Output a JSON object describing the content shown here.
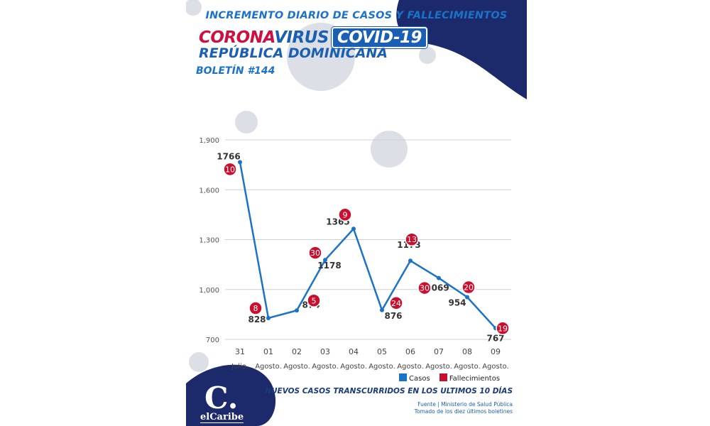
{
  "header": {
    "title": "INCREMENTO DIARIO DE CASOS Y FALLECIMIENTOS",
    "corona": "CORONA",
    "virus": "VIRUS",
    "covid": "COVID-19",
    "country": "REPÚBLICA DOMINICANA",
    "bulletin": "BOLETÍN #144"
  },
  "colors": {
    "casos": "#1a73c7",
    "fallecimientos": "#c8102e",
    "navy": "#1c2a6b"
  },
  "chart_data": {
    "type": "line",
    "categories": [
      {
        "day": "31",
        "month": "Julio."
      },
      {
        "day": "01",
        "month": "Agosto."
      },
      {
        "day": "02",
        "month": "Agosto."
      },
      {
        "day": "03",
        "month": "Agosto."
      },
      {
        "day": "04",
        "month": "Agosto."
      },
      {
        "day": "05",
        "month": "Agosto."
      },
      {
        "day": "06",
        "month": "Agosto."
      },
      {
        "day": "07",
        "month": "Agosto."
      },
      {
        "day": "08",
        "month": "Agosto."
      },
      {
        "day": "09",
        "month": "Agosto."
      }
    ],
    "series": [
      {
        "name": "Casos",
        "values": [
          1766,
          828,
          874,
          1178,
          1365,
          876,
          1173,
          1069,
          954,
          767
        ]
      },
      {
        "name": "Fallecimientos",
        "values": [
          10,
          8,
          5,
          30,
          9,
          24,
          13,
          30,
          20,
          19
        ]
      }
    ],
    "yticks": [
      "1,900",
      "1,600",
      "1,300",
      "1,000",
      "700"
    ],
    "ytick_values": [
      1900,
      1600,
      1300,
      1000,
      700
    ],
    "ylim": [
      700,
      1900
    ],
    "grid": true,
    "legend_position": "bottom-right"
  },
  "legend": {
    "casos": "Casos",
    "fallecimientos": "Fallecimientos"
  },
  "footer": {
    "subtitle": "NUEVOS CASOS TRANSCURRIDOS EN LOS ULTIMOS 10 DÍAS",
    "source_1": "Fuente | Ministerio de Salud Pública",
    "source_2": "Tomado de  los diez últimos boletines"
  },
  "logo": {
    "letter": "C.",
    "name": "elCaribe"
  }
}
